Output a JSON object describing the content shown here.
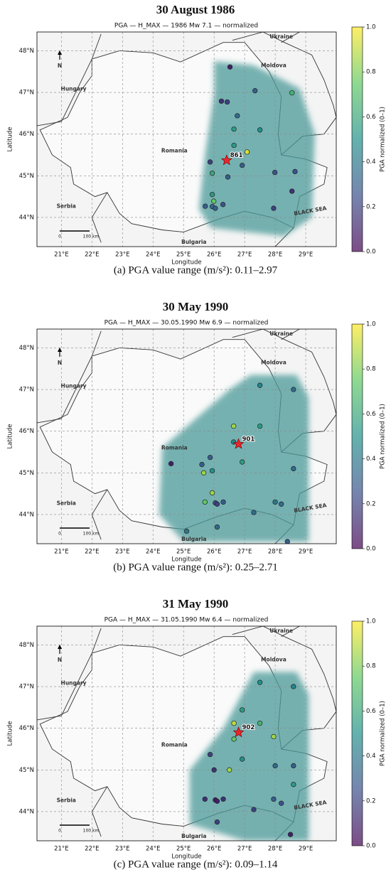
{
  "chart_data": [
    {
      "type": "scatter",
      "title": "30 August 1986",
      "subtitle": "PGA — H_MAX — 1986 Mw 7.1 — normalized",
      "xlabel": "Longitude",
      "ylabel": "Latitude",
      "colorbar_label": "PGA normalized (0–1)",
      "colormap": "viridis",
      "xlim": [
        20.2,
        30.0
      ],
      "ylim": [
        43.3,
        48.45
      ],
      "grid": true,
      "xticks": [
        {
          "value": 21,
          "label": "21°E"
        },
        {
          "value": 22,
          "label": "22°E"
        },
        {
          "value": 23,
          "label": "23°E"
        },
        {
          "value": 24,
          "label": "24°E"
        },
        {
          "value": 25,
          "label": "25°E"
        },
        {
          "value": 26,
          "label": "26°E"
        },
        {
          "value": 27,
          "label": "27°E"
        },
        {
          "value": 28,
          "label": "28°E"
        },
        {
          "value": 29,
          "label": "29°E"
        }
      ],
      "yticks": [
        {
          "value": 44,
          "label": "44°N"
        },
        {
          "value": 45,
          "label": "45°N"
        },
        {
          "value": 46,
          "label": "46°N"
        },
        {
          "value": 47,
          "label": "47°N"
        },
        {
          "value": 48,
          "label": "48°N"
        }
      ],
      "clim": [
        0,
        1
      ],
      "cticks": [
        {
          "value": 0,
          "label": "0.0"
        },
        0.2,
        0.4,
        0.6,
        0.8,
        {
          "value": 1,
          "label": "1.0"
        }
      ],
      "map_labels": [
        "Ukraine",
        "Moldova",
        "Hungary",
        "Romania",
        "Serbia",
        "Bulgaria",
        "BLACK SEA",
        "N",
        "0",
        "100 km"
      ],
      "epicenter": {
        "x": 26.41,
        "y": 45.37,
        "label": "861"
      },
      "x": [
        26.52,
        26.24,
        26.43,
        27.34,
        28.55,
        26.76,
        26.65,
        27.5,
        27.08,
        26.65,
        25.87,
        26.92,
        25.94,
        26.45,
        27.99,
        28.65,
        28.55,
        27.95,
        25.94,
        25.99,
        25.94,
        26.04,
        26.29,
        25.71
      ],
      "y": [
        47.61,
        46.79,
        46.77,
        47.04,
        46.99,
        46.44,
        46.12,
        46.1,
        45.57,
        45.73,
        45.33,
        45.25,
        45.06,
        44.97,
        45.08,
        45.1,
        44.63,
        44.22,
        44.55,
        44.39,
        44.26,
        44.22,
        44.31,
        44.27
      ],
      "values": [
        0.1,
        0.15,
        0.2,
        0.3,
        0.65,
        0.35,
        0.55,
        0.5,
        0.95,
        0.55,
        0.2,
        0.3,
        0.6,
        0.3,
        0.25,
        0.25,
        0.15,
        0.2,
        0.55,
        0.75,
        0.35,
        0.3,
        0.25,
        0.3
      ],
      "caption": "(a) PGA value range (m/s²): 0.11–2.97"
    },
    {
      "type": "scatter",
      "title": "30 May 1990",
      "subtitle": "PGA — H_MAX — 30.05.1990 Mw 6.9 — normalized",
      "xlabel": "Longitude",
      "ylabel": "Latitude",
      "colorbar_label": "PGA normalized (0–1)",
      "colormap": "viridis",
      "xlim": [
        20.2,
        30.0
      ],
      "ylim": [
        43.3,
        48.45
      ],
      "grid": true,
      "xticks": [
        {
          "value": 21,
          "label": "21°E"
        },
        {
          "value": 22,
          "label": "22°E"
        },
        {
          "value": 23,
          "label": "23°E"
        },
        {
          "value": 24,
          "label": "24°E"
        },
        {
          "value": 25,
          "label": "25°E"
        },
        {
          "value": 26,
          "label": "26°E"
        },
        {
          "value": 27,
          "label": "27°E"
        },
        {
          "value": 28,
          "label": "28°E"
        },
        {
          "value": 29,
          "label": "29°E"
        }
      ],
      "yticks": [
        {
          "value": 44,
          "label": "44°N"
        },
        {
          "value": 45,
          "label": "45°N"
        },
        {
          "value": 46,
          "label": "46°N"
        },
        {
          "value": 47,
          "label": "47°N"
        },
        {
          "value": 48,
          "label": "48°N"
        }
      ],
      "clim": [
        0,
        1
      ],
      "cticks": [
        {
          "value": 0,
          "label": "0.0"
        },
        0.2,
        0.4,
        0.6,
        0.8,
        {
          "value": 1,
          "label": "1.0"
        }
      ],
      "map_labels": [
        "Ukraine",
        "Moldova",
        "Hungary",
        "Romania",
        "Serbia",
        "Bulgaria",
        "BLACK SEA",
        "N",
        "0",
        "100 km"
      ],
      "epicenter": {
        "x": 26.8,
        "y": 45.69,
        "label": "901"
      },
      "x": [
        26.64,
        27.5,
        26.92,
        26.64,
        24.59,
        25.87,
        25.66,
        25.94,
        25.94,
        25.7,
        26.04,
        26.1,
        26.3,
        27.3,
        28.0,
        28.2,
        28.6,
        28.6,
        27.5,
        25.1,
        26.1,
        28.4,
        25.6
      ],
      "y": [
        46.12,
        46.12,
        45.26,
        45.74,
        45.22,
        45.37,
        45.0,
        45.05,
        44.52,
        44.3,
        44.28,
        44.25,
        44.3,
        44.05,
        44.3,
        44.25,
        45.1,
        47.0,
        47.1,
        43.6,
        43.7,
        43.35,
        45.2
      ],
      "values": [
        0.85,
        0.55,
        0.55,
        0.5,
        0.1,
        0.3,
        0.85,
        0.5,
        0.85,
        0.75,
        0.25,
        0.2,
        0.3,
        0.35,
        0.4,
        0.35,
        0.35,
        0.35,
        0.45,
        0.4,
        0.35,
        0.3,
        0.3
      ],
      "caption": "(b) PGA value range (m/s²): 0.25–2.71"
    },
    {
      "type": "scatter",
      "title": "31 May 1990",
      "subtitle": "PGA — H_MAX — 31.05.1990 Mw 6.4 — normalized",
      "xlabel": "Longitude",
      "ylabel": "Latitude",
      "colorbar_label": "PGA normalized (0–1)",
      "colormap": "viridis",
      "xlim": [
        20.2,
        30.0
      ],
      "ylim": [
        43.3,
        48.45
      ],
      "grid": true,
      "xticks": [
        {
          "value": 21,
          "label": "21°E"
        },
        {
          "value": 22,
          "label": "22°E"
        },
        {
          "value": 23,
          "label": "23°E"
        },
        {
          "value": 24,
          "label": "24°E"
        },
        {
          "value": 25,
          "label": "25°E"
        },
        {
          "value": 26,
          "label": "26°E"
        },
        {
          "value": 27,
          "label": "27°E"
        },
        {
          "value": 28,
          "label": "28°E"
        },
        {
          "value": 29,
          "label": "29°E"
        }
      ],
      "yticks": [
        {
          "value": 44,
          "label": "44°N"
        },
        {
          "value": 45,
          "label": "45°N"
        },
        {
          "value": 46,
          "label": "46°N"
        },
        {
          "value": 47,
          "label": "47°N"
        },
        {
          "value": 48,
          "label": "48°N"
        }
      ],
      "clim": [
        0,
        1
      ],
      "cticks": [
        {
          "value": 0,
          "label": "0.0"
        },
        0.2,
        0.4,
        0.6,
        0.8,
        {
          "value": 1,
          "label": "1.0"
        }
      ],
      "map_labels": [
        "Ukraine",
        "Moldova",
        "Hungary",
        "Romania",
        "Serbia",
        "Bulgaria",
        "BLACK SEA",
        "N",
        "0",
        "100 km"
      ],
      "epicenter": {
        "x": 26.8,
        "y": 45.9,
        "label": "902"
      },
      "x": [
        26.65,
        27.5,
        26.92,
        27.95,
        26.65,
        26.92,
        26.5,
        25.87,
        26.0,
        26.04,
        26.1,
        26.3,
        25.7,
        27.3,
        27.95,
        28.2,
        28.6,
        28.6,
        28.6,
        27.5,
        28.5,
        26.1,
        28.0
      ],
      "y": [
        46.12,
        46.12,
        46.44,
        45.8,
        45.74,
        45.26,
        45.0,
        45.37,
        45.0,
        44.28,
        44.25,
        44.3,
        44.3,
        44.05,
        44.3,
        44.2,
        44.65,
        45.1,
        47.0,
        47.1,
        43.45,
        43.75,
        45.1
      ],
      "values": [
        0.9,
        0.65,
        0.55,
        0.85,
        0.75,
        0.5,
        0.85,
        0.2,
        0.15,
        0.1,
        0.1,
        0.15,
        0.15,
        0.2,
        0.3,
        0.25,
        0.55,
        0.3,
        0.45,
        0.5,
        0.1,
        0.2,
        0.35
      ],
      "caption": "(c) PGA value range (m/s²): 0.09–1.14"
    }
  ]
}
